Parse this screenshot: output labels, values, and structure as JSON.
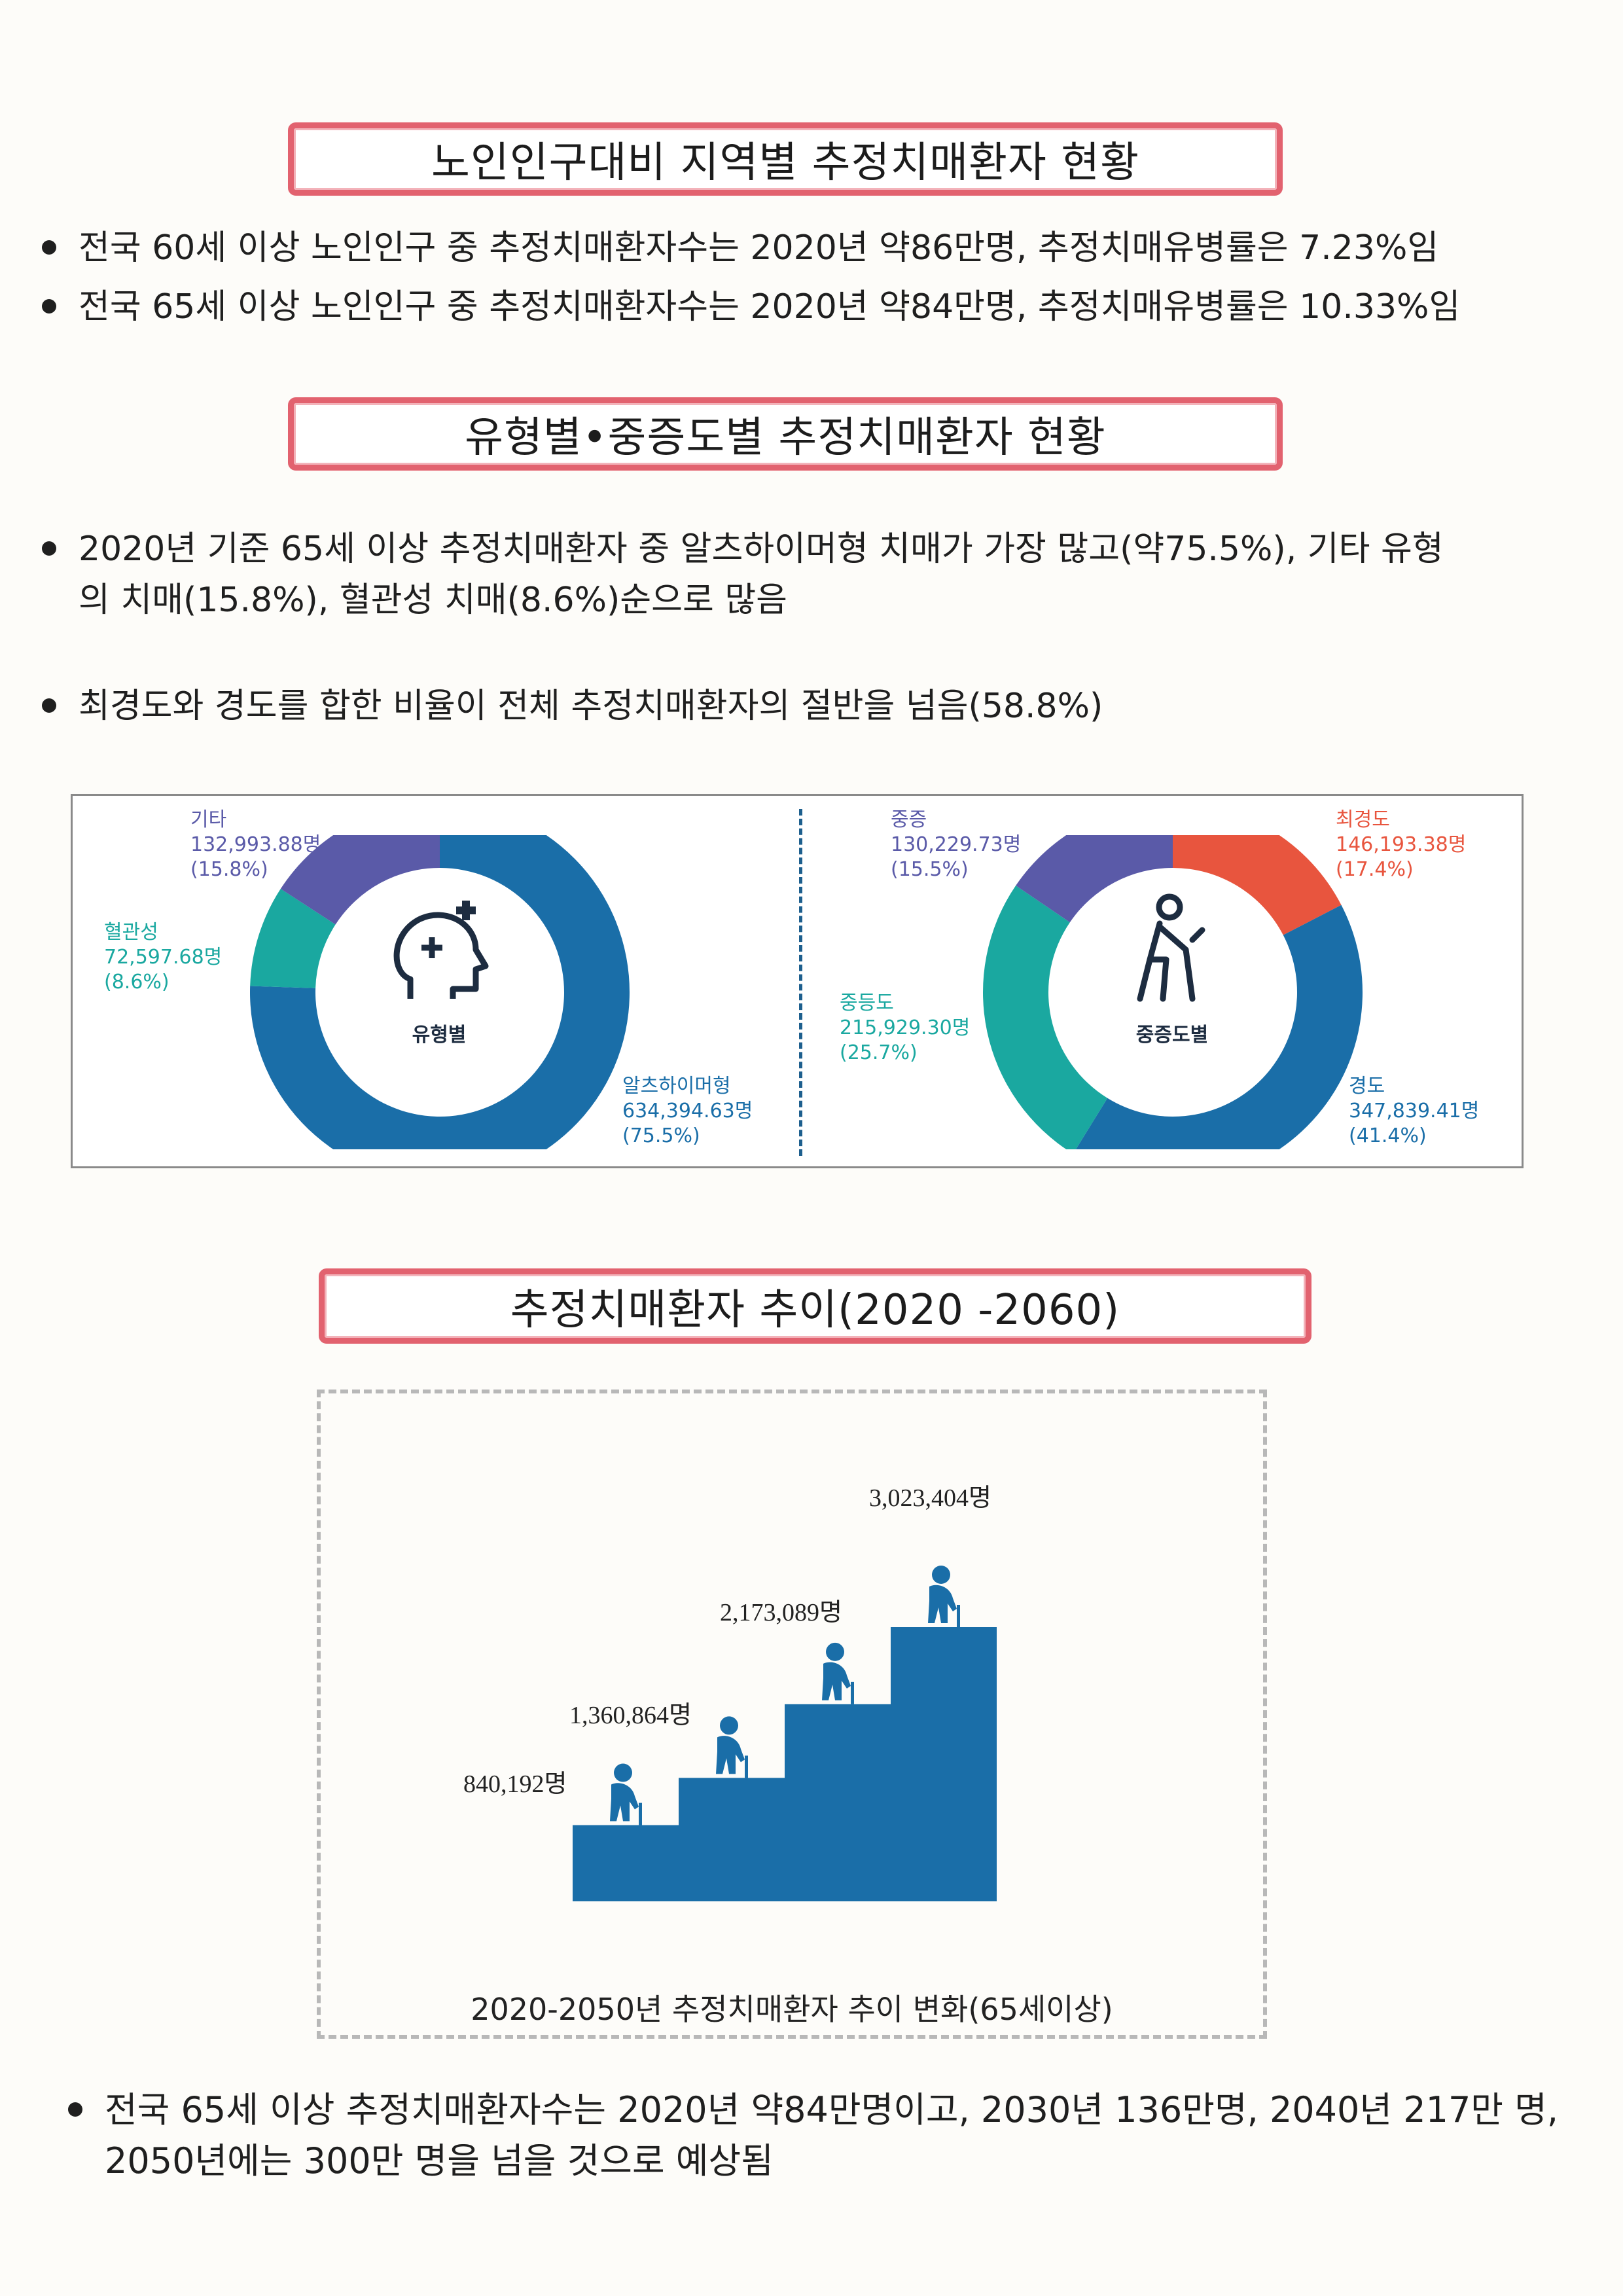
{
  "section1": {
    "title": "노인인구대비 지역별 추정치매환자 현황",
    "bullets": [
      "전국 60세 이상 노인인구 중 추정치매환자수는 2020년 약86만명, 추정치매유병률은 7.23%임",
      "전국 65세 이상 노인인구 중 추정치매환자수는 2020년 약84만명, 추정치매유병률은 10.33%임"
    ]
  },
  "section2": {
    "title": "유형별•중증도별 추정치매환자 현황",
    "bullet1_line1": "2020년 기준 65세 이상 추정치매환자 중 알츠하이머형 치매가 가장 많고(약75.5%), 기타 유형",
    "bullet1_line2": "의 치매(15.8%), 혈관성 치매(8.6%)순으로 많음",
    "bullet2": "최경도와  경도를 합한 비율이  전체 추정치매환자의 절반을 넘음(58.8%)"
  },
  "chart_data": [
    {
      "type": "pie",
      "center_label": "유형별",
      "categories": [
        "알츠하이머형",
        "혈관성",
        "기타"
      ],
      "values": [
        634394.63,
        72597.68,
        132993.88
      ],
      "labels": [
        {
          "name": "알츠하이머형",
          "value": "634,394.63명",
          "pct": "(75.5%)"
        },
        {
          "name": "혈관성",
          "value": "72,597.68명",
          "pct": "(8.6%)"
        },
        {
          "name": "기타",
          "value": "132,993.88명",
          "pct": "(15.8%)"
        }
      ],
      "colors": [
        "#1a6ea8",
        "#1aa8a0",
        "#5a5aa8"
      ]
    },
    {
      "type": "pie",
      "center_label": "중증도별",
      "categories": [
        "최경도",
        "경도",
        "중등도",
        "중증"
      ],
      "values": [
        146193.38,
        347839.41,
        215929.3,
        130229.73
      ],
      "labels": [
        {
          "name": "최경도",
          "value": "146,193.38명",
          "pct": "(17.4%)"
        },
        {
          "name": "경도",
          "value": "347,839.41명",
          "pct": "(41.4%)"
        },
        {
          "name": "중등도",
          "value": "215,929.30명",
          "pct": "(25.7%)"
        },
        {
          "name": "중증",
          "value": "130,229.73명",
          "pct": "(15.5%)"
        }
      ],
      "colors": [
        "#e8553e",
        "#1a6ea8",
        "#1aa8a0",
        "#5a5aa8"
      ]
    },
    {
      "type": "bar",
      "caption": "2020-2050년 추정치매환자 추이 변화(65세이상)",
      "values": [
        840192,
        1360864,
        2173089,
        3023404
      ],
      "value_labels": [
        "840,192명",
        "1,360,864명",
        "2,173,089명",
        "3,023,404명"
      ],
      "color": "#1a6ea8"
    }
  ],
  "section3": {
    "title": "추정치매환자 추이(2020 -2060)",
    "bullet_line1": "전국 65세 이상 추정치매환자수는 2020년 약84만명이고, 2030년 136만명, 2040년 217만 명,",
    "bullet_line2": "2050년에는 300만 명을 넘을 것으로 예상됨"
  }
}
